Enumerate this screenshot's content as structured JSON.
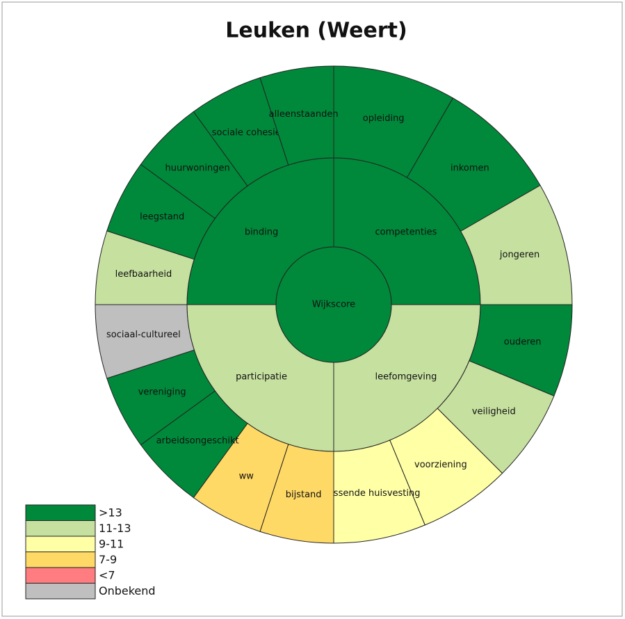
{
  "chart_data": {
    "type": "sunburst",
    "title": "Leuken (Weert)",
    "root": {
      "label": "Wijkscore",
      "color": "#00893a",
      "children": [
        {
          "label": "competenties",
          "color": "#00893a",
          "children": [
            {
              "label": "opleiding",
              "color": "#00893a"
            },
            {
              "label": "inkomen",
              "color": "#00893a"
            },
            {
              "label": "jongeren",
              "color": "#c6e0a0"
            }
          ]
        },
        {
          "label": "leefomgeving",
          "color": "#c6e0a0",
          "children": [
            {
              "label": "ouderen",
              "color": "#00893a"
            },
            {
              "label": "veiligheid",
              "color": "#c6e0a0"
            },
            {
              "label": "voorziening",
              "color": "#ffffa6"
            },
            {
              "label": "passende huisvesting",
              "color": "#ffffa6"
            }
          ]
        },
        {
          "label": "participatie",
          "color": "#c6e0a0",
          "children": [
            {
              "label": "bijstand",
              "color": "#ffd966"
            },
            {
              "label": "ww",
              "color": "#ffd966"
            },
            {
              "label": "arbeidsongeschikt",
              "color": "#00893a"
            },
            {
              "label": "vereniging",
              "color": "#00893a"
            },
            {
              "label": "sociaal-cultureel",
              "color": "#bfbfbf"
            }
          ]
        },
        {
          "label": "binding",
          "color": "#00893a",
          "children": [
            {
              "label": "leefbaarheid",
              "color": "#c6e0a0"
            },
            {
              "label": "leegstand",
              "color": "#00893a"
            },
            {
              "label": "huurwoningen",
              "color": "#00893a"
            },
            {
              "label": "sociale cohesie",
              "color": "#00893a"
            },
            {
              "label": "alleenstaanden",
              "color": "#00893a"
            }
          ]
        }
      ]
    },
    "legend": [
      {
        "label": ">13",
        "color": "#00893a"
      },
      {
        "label": "11-13",
        "color": "#c6e0a0"
      },
      {
        "label": "9-11",
        "color": "#ffffa6"
      },
      {
        "label": "7-9",
        "color": "#ffd966"
      },
      {
        "label": "<7",
        "color": "#ff7c80"
      },
      {
        "label": "Onbekend",
        "color": "#bfbfbf"
      }
    ]
  }
}
